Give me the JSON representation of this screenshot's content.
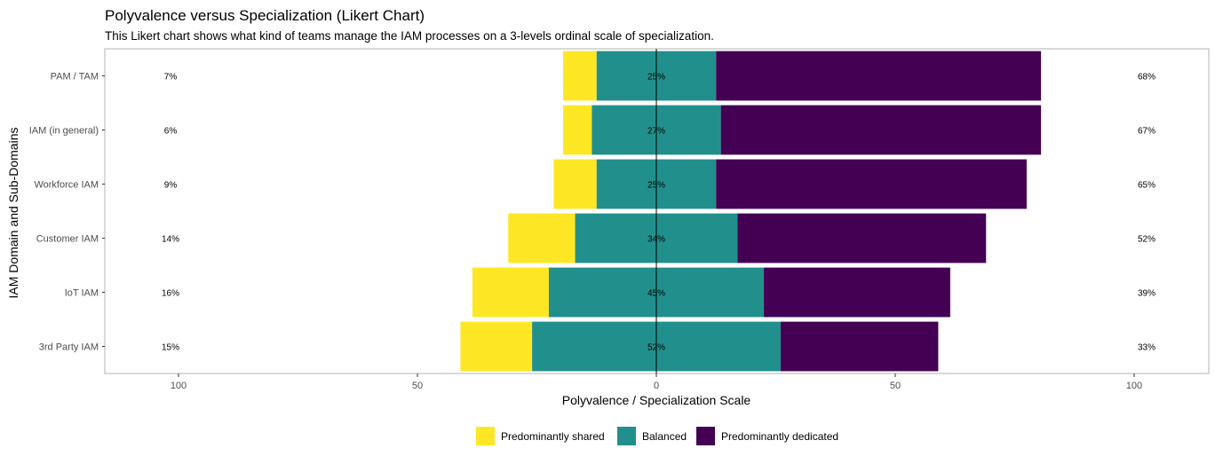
{
  "chart_data": {
    "type": "bar",
    "orientation": "horizontal",
    "stacking": "diverging",
    "title": "Polyvalence versus Specialization (Likert Chart)",
    "subtitle": "This Likert chart shows what kind of teams manage the IAM processes on a 3-levels ordinal scale of specialization.",
    "xlabel": "Polyvalence / Specialization Scale",
    "ylabel": "IAM Domain and Sub-Domains",
    "xlim": [
      -100,
      100
    ],
    "x_ticks": [
      -100,
      -50,
      0,
      50,
      100
    ],
    "x_tick_labels": [
      "100",
      "50",
      "0",
      "50",
      "100"
    ],
    "grid": false,
    "legend_position": "bottom",
    "categories": [
      "PAM / TAM",
      "IAM (in general)",
      "Workforce IAM",
      "Customer IAM",
      "IoT IAM",
      "3rd Party IAM"
    ],
    "series": [
      {
        "name": "Predominantly shared",
        "color": "#FDE725",
        "values": [
          7,
          6,
          9,
          14,
          16,
          15
        ]
      },
      {
        "name": "Balanced",
        "color": "#21908C",
        "values": [
          25,
          27,
          25,
          34,
          45,
          52
        ]
      },
      {
        "name": "Predominantly dedicated",
        "color": "#440154",
        "values": [
          68,
          67,
          65,
          52,
          39,
          33
        ]
      }
    ],
    "left_labels": [
      "7%",
      "6%",
      "9%",
      "14%",
      "16%",
      "15%"
    ],
    "center_labels": [
      "25%",
      "27%",
      "25%",
      "34%",
      "45%",
      "52%"
    ],
    "right_labels": [
      "68%",
      "67%",
      "65%",
      "52%",
      "39%",
      "33%"
    ]
  }
}
